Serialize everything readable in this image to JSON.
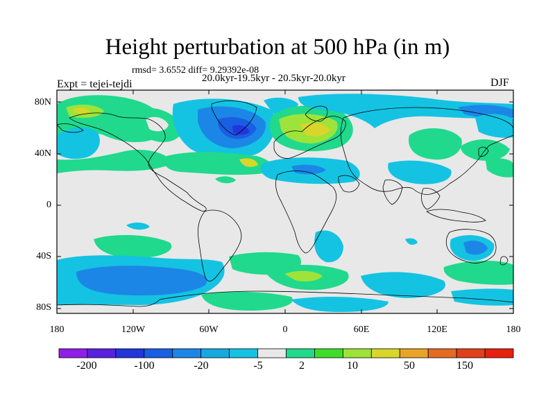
{
  "header": {
    "title": "Height perturbation at 500 hPa (in m)",
    "stats": "rmsd= 3.6552 diff= 9.29392e-08",
    "experiment": "Expt = tejei-tejdi",
    "period": "20.0kyr-19.5kyr - 20.5kyr-20.0kyr",
    "season": "DJF"
  },
  "axes": {
    "lat_labels": [
      "80N",
      "40N",
      "0",
      "40S",
      "80S"
    ],
    "lon_labels": [
      "180",
      "120W",
      "60W",
      "0",
      "60E",
      "120E",
      "180"
    ]
  },
  "colorbar": {
    "colors": [
      "#8f1ee8",
      "#5a20e0",
      "#2236dc",
      "#1a5ee3",
      "#1c86e6",
      "#15a9e0",
      "#14c3e2",
      "#e8e8e8",
      "#20d98c",
      "#40dc2c",
      "#9ee33a",
      "#d8d62a",
      "#e8a428",
      "#e56a22",
      "#e0401c",
      "#e82010"
    ],
    "labels": [
      "-200",
      "-100",
      "-20",
      "-5",
      "2",
      "10",
      "50",
      "150"
    ],
    "missing_color": "#e8e8e8"
  }
}
